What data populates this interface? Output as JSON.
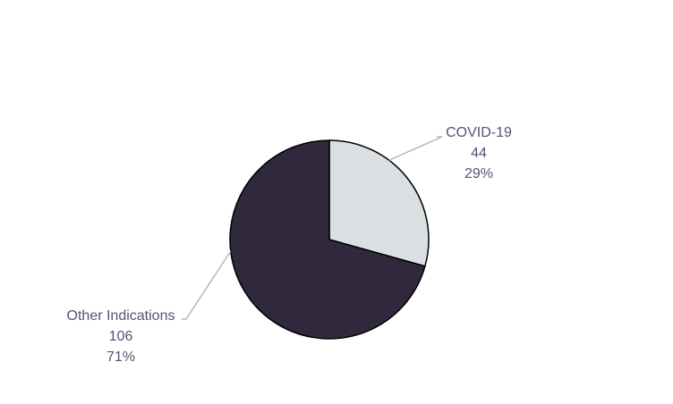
{
  "chart_data": {
    "type": "pie",
    "title": "",
    "slices": [
      {
        "label": "COVID-19",
        "value": 44,
        "percent": "29%",
        "color": "#dadfe1"
      },
      {
        "label": "Other Indications",
        "value": 106,
        "percent": "71%",
        "color": "#30283c"
      }
    ],
    "slice_outline_color": "#000000",
    "label_text_color": "#5a5070",
    "leader_line_color": "#b8b4c4",
    "legend": "none",
    "start_angle": "12 o'clock",
    "direction": "clockwise"
  }
}
